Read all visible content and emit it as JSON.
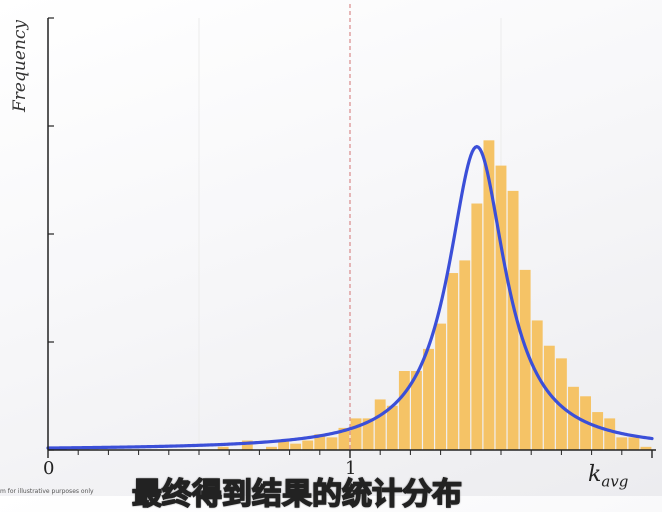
{
  "chart_data": {
    "type": "bar",
    "title": "",
    "xlabel": "k",
    "xlabel_sub": "avg",
    "ylabel": "Frequency",
    "xlim": [
      0,
      2.0
    ],
    "ylim": [
      0,
      100
    ],
    "x_ticks": [
      {
        "value": 0,
        "label": "0"
      },
      {
        "value": 1,
        "label": "1"
      }
    ],
    "reference_line": {
      "x": 1,
      "style": "dashed",
      "color": "#d98a8a"
    },
    "bin_width": 0.04,
    "bins": [
      {
        "x": 0.58,
        "y": 1
      },
      {
        "x": 0.66,
        "y": 3
      },
      {
        "x": 0.74,
        "y": 1
      },
      {
        "x": 0.78,
        "y": 3
      },
      {
        "x": 0.82,
        "y": 2
      },
      {
        "x": 0.86,
        "y": 3
      },
      {
        "x": 0.9,
        "y": 5
      },
      {
        "x": 0.94,
        "y": 4
      },
      {
        "x": 0.98,
        "y": 7
      },
      {
        "x": 1.02,
        "y": 10
      },
      {
        "x": 1.06,
        "y": 10
      },
      {
        "x": 1.1,
        "y": 16
      },
      {
        "x": 1.14,
        "y": 14
      },
      {
        "x": 1.18,
        "y": 25
      },
      {
        "x": 1.22,
        "y": 25
      },
      {
        "x": 1.26,
        "y": 32
      },
      {
        "x": 1.3,
        "y": 40
      },
      {
        "x": 1.34,
        "y": 56
      },
      {
        "x": 1.38,
        "y": 60
      },
      {
        "x": 1.42,
        "y": 78
      },
      {
        "x": 1.46,
        "y": 98
      },
      {
        "x": 1.5,
        "y": 90
      },
      {
        "x": 1.54,
        "y": 82
      },
      {
        "x": 1.58,
        "y": 57
      },
      {
        "x": 1.62,
        "y": 41
      },
      {
        "x": 1.66,
        "y": 33
      },
      {
        "x": 1.7,
        "y": 29
      },
      {
        "x": 1.74,
        "y": 20
      },
      {
        "x": 1.78,
        "y": 17
      },
      {
        "x": 1.82,
        "y": 12
      },
      {
        "x": 1.86,
        "y": 10
      },
      {
        "x": 1.9,
        "y": 4
      },
      {
        "x": 1.94,
        "y": 4
      },
      {
        "x": 1.98,
        "y": 1
      }
    ],
    "fit_curve": {
      "type": "lorentzian",
      "center": 1.42,
      "peak": 96,
      "half_width": 0.115,
      "color": "#3b4fd8"
    },
    "bar_color": "#f5c366"
  },
  "captions": {
    "disclaimer": "m for illustrative purposes only",
    "subtitle": "最终得到结果的统计分布"
  }
}
